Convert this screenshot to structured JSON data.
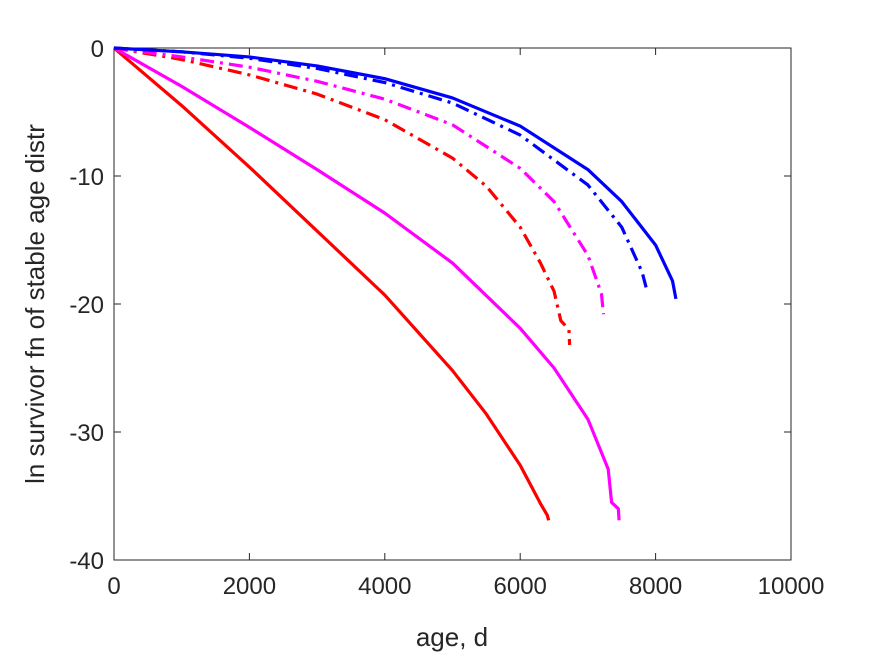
{
  "chart_data": {
    "type": "line",
    "title": "",
    "xlabel": "age, d",
    "ylabel": "ln survivor fn of stable age distr",
    "xlim": [
      0,
      10000
    ],
    "ylim": [
      -40,
      0
    ],
    "xticks": [
      "0",
      "2000",
      "4000",
      "6000",
      "8000",
      "10000"
    ],
    "yticks": [
      "0",
      "-10",
      "-20",
      "-30",
      "-40"
    ],
    "grid": false,
    "legend": "none",
    "series": [
      {
        "color": "#ff0000",
        "style": "solid",
        "x": [
          0,
          1000,
          2000,
          3000,
          4000,
          5000,
          5500,
          6000,
          6300,
          6400,
          6420
        ],
        "y": [
          0,
          -4.5,
          -9.3,
          -14.3,
          -19.3,
          -25.2,
          -28.6,
          -32.6,
          -35.6,
          -36.5,
          -36.9
        ]
      },
      {
        "color": "#ff00ff",
        "style": "solid",
        "x": [
          0,
          1000,
          2000,
          3000,
          4000,
          5000,
          6000,
          6500,
          7000,
          7300,
          7350,
          7450,
          7460
        ],
        "y": [
          0,
          -3.0,
          -6.2,
          -9.5,
          -12.9,
          -16.8,
          -21.9,
          -25.0,
          -29.0,
          -32.9,
          -35.5,
          -36.0,
          -36.9
        ]
      },
      {
        "color": "#ff0000",
        "style": "dashdot",
        "x": [
          0,
          1000,
          2000,
          3000,
          4000,
          5000,
          5500,
          6000,
          6300,
          6500,
          6600,
          6720,
          6730
        ],
        "y": [
          0,
          -0.9,
          -2.1,
          -3.6,
          -5.6,
          -8.6,
          -10.8,
          -14.0,
          -16.8,
          -19.0,
          -21.3,
          -22.0,
          -23.2
        ]
      },
      {
        "color": "#ff00ff",
        "style": "dashdot",
        "x": [
          0,
          1000,
          2000,
          3000,
          4000,
          5000,
          6000,
          6500,
          7000,
          7200,
          7230
        ],
        "y": [
          0,
          -0.7,
          -1.5,
          -2.6,
          -4.0,
          -6.0,
          -9.4,
          -12.0,
          -16.2,
          -19.2,
          -20.8
        ]
      },
      {
        "color": "#0000ff",
        "style": "dashdot",
        "x": [
          0,
          1000,
          2000,
          3000,
          4000,
          5000,
          6000,
          7000,
          7500,
          7800,
          7860
        ],
        "y": [
          0,
          -0.3,
          -0.8,
          -1.6,
          -2.7,
          -4.3,
          -6.8,
          -10.7,
          -14.0,
          -17.5,
          -18.7
        ]
      },
      {
        "color": "#0000ff",
        "style": "solid",
        "x": [
          0,
          1000,
          2000,
          3000,
          4000,
          5000,
          6000,
          7000,
          7500,
          8000,
          8250,
          8300
        ],
        "y": [
          0,
          -0.3,
          -0.7,
          -1.4,
          -2.4,
          -3.9,
          -6.1,
          -9.5,
          -12.0,
          -15.4,
          -18.2,
          -19.6
        ]
      }
    ]
  }
}
